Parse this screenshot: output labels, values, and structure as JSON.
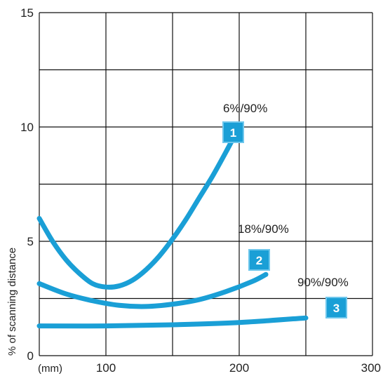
{
  "chart_data": {
    "type": "line",
    "xlabel": "",
    "x_unit": "(mm)",
    "ylabel": "% of scanning distance",
    "xlim": [
      50,
      300
    ],
    "ylim": [
      0,
      15
    ],
    "x_ticks": [
      100,
      200,
      300
    ],
    "y_ticks": [
      0,
      5,
      10,
      15
    ],
    "x_grid": [
      50,
      100,
      150,
      200,
      250,
      300
    ],
    "y_grid": [
      0,
      2.5,
      5,
      7.5,
      10,
      12.5,
      15
    ],
    "grid": true,
    "line_color": "#1a9fd6",
    "badge_color": "#1a9fd6",
    "series": [
      {
        "name": "6%/90%",
        "badge": "1",
        "x": [
          50,
          60,
          70,
          80,
          90,
          100,
          110,
          120,
          130,
          140,
          150,
          160,
          170,
          180,
          190,
          200
        ],
        "y": [
          6.0,
          5.0,
          4.2,
          3.6,
          3.15,
          3.0,
          3.05,
          3.3,
          3.75,
          4.35,
          5.1,
          5.95,
          6.9,
          7.85,
          8.9,
          10.0
        ]
      },
      {
        "name": "18%/90%",
        "badge": "2",
        "x": [
          50,
          70,
          90,
          110,
          130,
          150,
          170,
          190,
          210,
          220
        ],
        "y": [
          3.15,
          2.7,
          2.4,
          2.2,
          2.15,
          2.25,
          2.45,
          2.8,
          3.25,
          3.55
        ]
      },
      {
        "name": "90%/90%",
        "badge": "3",
        "x": [
          50,
          100,
          150,
          200,
          250
        ],
        "y": [
          1.3,
          1.3,
          1.35,
          1.45,
          1.65
        ]
      }
    ]
  }
}
